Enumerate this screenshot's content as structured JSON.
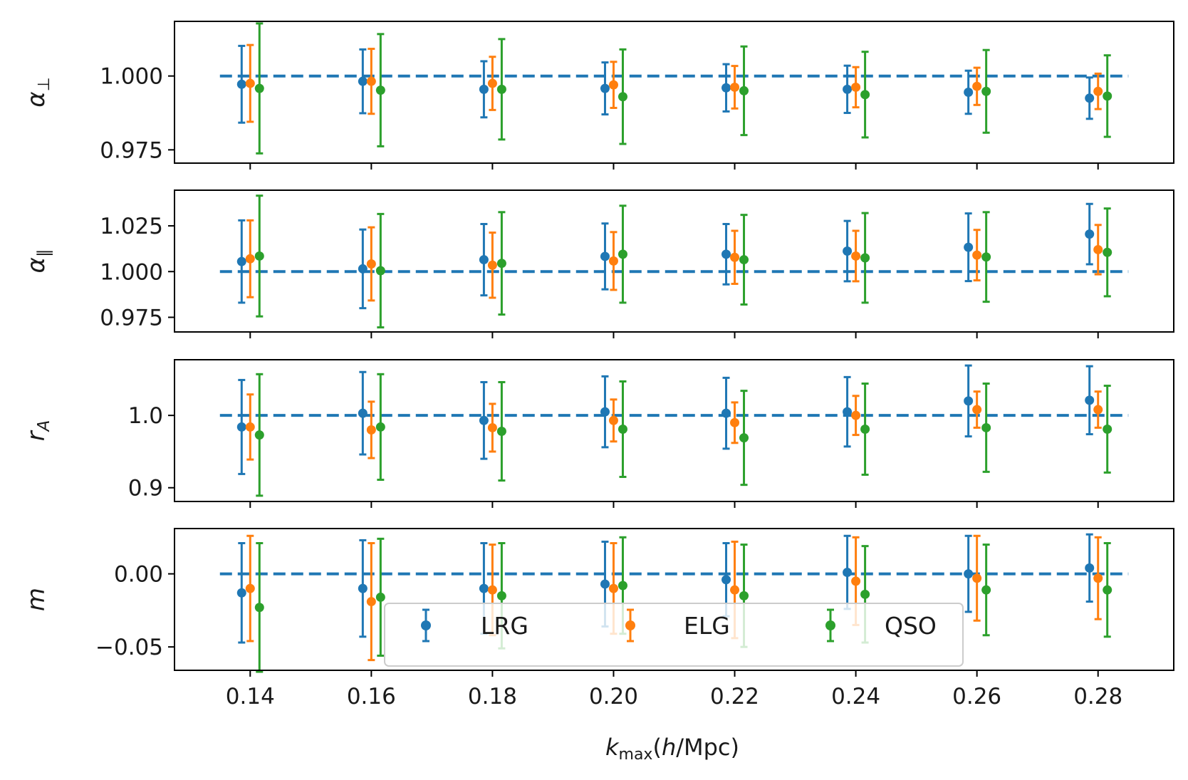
{
  "chart_data": {
    "type": "scatter",
    "kind": "errorbar",
    "x": [
      0.14,
      0.16,
      0.18,
      0.2,
      0.22,
      0.24,
      0.26,
      0.28
    ],
    "x_tick_labels": [
      "0.14",
      "0.16",
      "0.18",
      "0.20",
      "0.22",
      "0.24",
      "0.26",
      "0.28"
    ],
    "xlabel": {
      "main": "k",
      "sub": "max",
      "unit": "(h/Mpc)"
    },
    "xlim": [
      0.1275,
      0.2925
    ],
    "reference_line": {
      "xmin": 0.135,
      "xmax": 0.285,
      "style": "dashed",
      "color": "#1f77b4"
    },
    "legend": {
      "position": "lower center of bottom panel",
      "entries": [
        "LRG",
        "ELG",
        "QSO"
      ]
    },
    "series_colors": {
      "LRG": "#1f77b4",
      "ELG": "#ff7f0e",
      "QSO": "#2ca02c"
    },
    "panels": [
      {
        "ylabel": {
          "main": "α",
          "sub": "⊥"
        },
        "ylim": [
          0.9705,
          1.0185
        ],
        "yticks": [
          0.975,
          1.0
        ],
        "ytick_labels": [
          "0.975",
          "1.000"
        ],
        "reference": 1.0,
        "series": [
          {
            "name": "LRG",
            "values": [
              0.9972,
              0.9982,
              0.9955,
              0.9958,
              0.996,
              0.9955,
              0.9945,
              0.9925
            ],
            "errors": [
              0.013,
              0.0108,
              0.0095,
              0.0088,
              0.008,
              0.008,
              0.0073,
              0.007
            ]
          },
          {
            "name": "ELG",
            "values": [
              0.9975,
              0.9982,
              0.9975,
              0.997,
              0.9962,
              0.9962,
              0.9965,
              0.9948
            ],
            "errors": [
              0.013,
              0.011,
              0.009,
              0.0078,
              0.0072,
              0.0068,
              0.0063,
              0.006
            ]
          },
          {
            "name": "QSO",
            "values": [
              0.9958,
              0.9952,
              0.9955,
              0.993,
              0.995,
              0.9937,
              0.9948,
              0.9932
            ],
            "errors": [
              0.022,
              0.019,
              0.017,
              0.016,
              0.015,
              0.0145,
              0.014,
              0.0138
            ]
          }
        ]
      },
      {
        "ylabel": {
          "main": "α",
          "sub": "∥"
        },
        "ylim": [
          0.967,
          1.0445
        ],
        "yticks": [
          0.975,
          1.0,
          1.025
        ],
        "ytick_labels": [
          "0.975",
          "1.000",
          "1.025"
        ],
        "reference": 1.0,
        "series": [
          {
            "name": "LRG",
            "values": [
              1.0055,
              1.0015,
              1.0065,
              1.0083,
              1.0095,
              1.0112,
              1.0133,
              1.0205
            ],
            "errors": [
              0.0225,
              0.0215,
              0.0195,
              0.018,
              0.0165,
              0.0165,
              0.0185,
              0.0165
            ]
          },
          {
            "name": "ELG",
            "values": [
              1.007,
              1.0042,
              1.0035,
              1.0058,
              1.0078,
              1.0085,
              1.009,
              1.012
            ],
            "errors": [
              0.021,
              0.02,
              0.0178,
              0.0158,
              0.0145,
              0.0138,
              0.0138,
              0.0135
            ]
          },
          {
            "name": "QSO",
            "values": [
              1.0085,
              1.0005,
              1.0045,
              1.0095,
              1.0065,
              1.0075,
              1.008,
              1.0105
            ],
            "errors": [
              0.033,
              0.031,
              0.028,
              0.0265,
              0.0245,
              0.0245,
              0.0245,
              0.024
            ]
          }
        ]
      },
      {
        "ylabel": {
          "main": "r",
          "sub": "A"
        },
        "ylim": [
          0.881,
          1.077
        ],
        "yticks": [
          0.9,
          1.0
        ],
        "ytick_labels": [
          "0.9",
          "1.0"
        ],
        "reference": 1.0,
        "series": [
          {
            "name": "LRG",
            "values": [
              0.984,
              1.003,
              0.993,
              1.005,
              1.003,
              1.005,
              1.02,
              1.021
            ],
            "errors": [
              0.065,
              0.057,
              0.053,
              0.049,
              0.049,
              0.048,
              0.049,
              0.047
            ]
          },
          {
            "name": "ELG",
            "values": [
              0.984,
              0.98,
              0.983,
              0.993,
              0.99,
              1.0,
              1.008,
              1.008
            ],
            "errors": [
              0.045,
              0.039,
              0.033,
              0.029,
              0.028,
              0.027,
              0.025,
              0.025
            ]
          },
          {
            "name": "QSO",
            "values": [
              0.973,
              0.984,
              0.978,
              0.981,
              0.969,
              0.981,
              0.983,
              0.981
            ],
            "errors": [
              0.084,
              0.073,
              0.068,
              0.066,
              0.065,
              0.063,
              0.061,
              0.06
            ]
          }
        ]
      },
      {
        "ylabel": {
          "main": "m",
          "sub": ""
        },
        "ylim": [
          -0.066,
          0.031
        ],
        "yticks": [
          -0.05,
          0.0
        ],
        "ytick_labels": [
          "−0.05",
          "0.00"
        ],
        "reference": 0.0,
        "series": [
          {
            "name": "LRG",
            "values": [
              -0.013,
              -0.01,
              -0.01,
              -0.007,
              -0.004,
              0.001,
              0.0,
              0.004
            ],
            "errors": [
              0.034,
              0.033,
              0.031,
              0.029,
              0.025,
              0.025,
              0.026,
              0.023
            ]
          },
          {
            "name": "ELG",
            "values": [
              -0.01,
              -0.019,
              -0.011,
              -0.01,
              -0.011,
              -0.005,
              -0.003,
              -0.003
            ],
            "errors": [
              0.036,
              0.04,
              0.031,
              0.031,
              0.033,
              0.03,
              0.029,
              0.028
            ]
          },
          {
            "name": "QSO",
            "values": [
              -0.023,
              -0.016,
              -0.015,
              -0.008,
              -0.015,
              -0.014,
              -0.011,
              -0.011
            ],
            "errors": [
              0.044,
              0.04,
              0.036,
              0.033,
              0.035,
              0.033,
              0.031,
              0.032
            ]
          }
        ]
      }
    ]
  }
}
